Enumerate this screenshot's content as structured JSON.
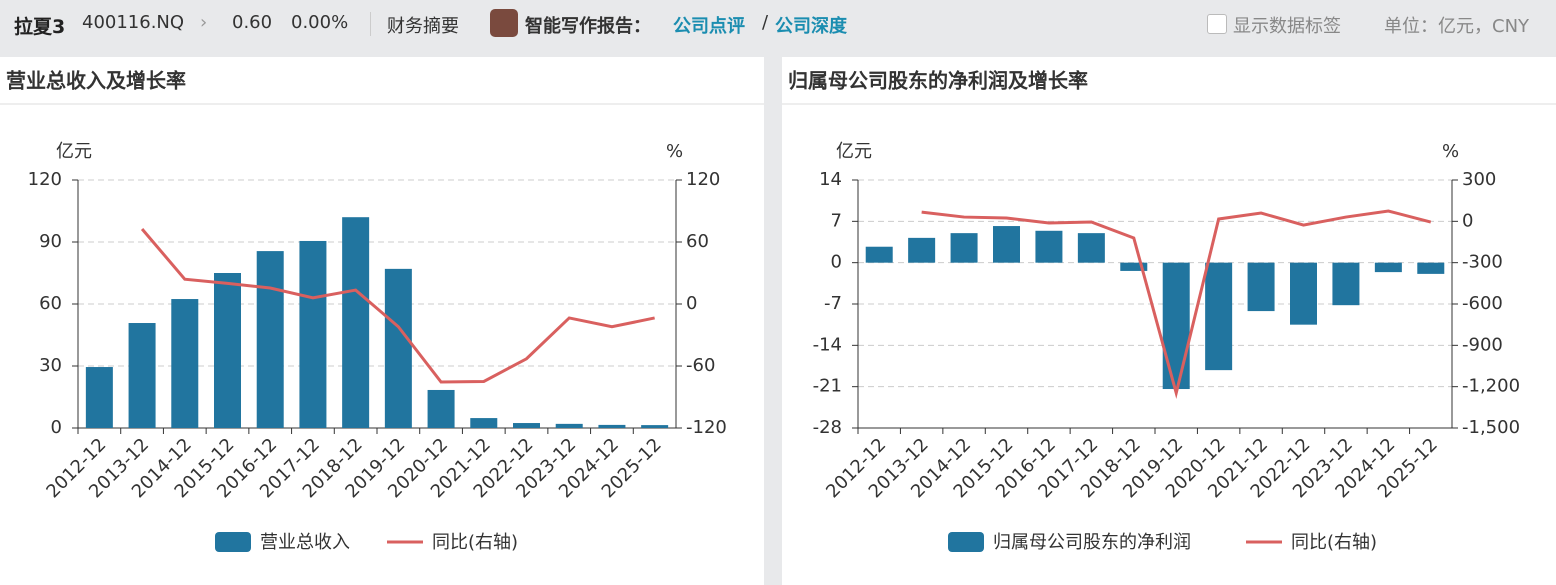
{
  "header": {
    "name": "拉夏3",
    "code": "400116.NQ",
    "price": "0.60",
    "change": "0.00%",
    "tab": "财务摘要",
    "report_label": "智能写作报告：",
    "link1": "公司点评",
    "separator": "/",
    "link2": "公司深度",
    "checkbox_label": "显示数据标签",
    "unit": "单位：亿元，CNY"
  },
  "chart_data": [
    {
      "type": "bar",
      "title": "营业总收入及增长率",
      "ylabel": "亿元",
      "y2label": "%",
      "categories": [
        "2012-12",
        "2013-12",
        "2014-12",
        "2015-12",
        "2016-12",
        "2017-12",
        "2018-12",
        "2019-12",
        "2020-12",
        "2021-12",
        "2022-12",
        "2023-12",
        "2024-12",
        "2025-12"
      ],
      "series": [
        {
          "name": "营业总收入",
          "type": "bar",
          "color": "#21759f",
          "values": [
            29.5,
            50.8,
            62.4,
            75,
            85.6,
            90.5,
            102,
            77,
            18.4,
            4.8,
            2.4,
            2,
            1.5,
            1.4
          ]
        },
        {
          "name": "同比(右轴)",
          "type": "line",
          "axis": "y2",
          "color": "#d9605f",
          "values": [
            null,
            72.6,
            24,
            20,
            15.5,
            6,
            13.5,
            -22,
            -75.5,
            -75,
            -53,
            -13.5,
            -22,
            -13.5
          ]
        }
      ],
      "ylim": [
        0,
        120
      ],
      "yticks": [
        0,
        30,
        60,
        90,
        120
      ],
      "y2lim": [
        -120,
        120
      ],
      "y2ticks": [
        -120,
        -60,
        0,
        60,
        120
      ],
      "grid": true
    },
    {
      "type": "bar",
      "title": "归属母公司股东的净利润及增长率",
      "ylabel": "亿元",
      "y2label": "%",
      "categories": [
        "2012-12",
        "2013-12",
        "2014-12",
        "2015-12",
        "2016-12",
        "2017-12",
        "2018-12",
        "2019-12",
        "2020-12",
        "2021-12",
        "2022-12",
        "2023-12",
        "2024-12",
        "2025-12"
      ],
      "series": [
        {
          "name": "归属母公司股东的净利润",
          "type": "bar",
          "color": "#21759f",
          "values": [
            2.7,
            4.2,
            5.0,
            6.2,
            5.4,
            5.0,
            -1.4,
            -21.4,
            -18.2,
            -8.2,
            -10.5,
            -7.2,
            -1.6,
            -1.9
          ]
        },
        {
          "name": "同比(右轴)",
          "type": "line",
          "axis": "y2",
          "color": "#d9605f",
          "values": [
            null,
            67,
            31,
            24,
            -12,
            -5,
            -121,
            -1246,
            17,
            60,
            -27,
            31,
            75,
            -5
          ]
        }
      ],
      "ylim": [
        -28,
        14
      ],
      "yticks": [
        -28,
        -21,
        -14,
        -7,
        0,
        7,
        14
      ],
      "y2lim": [
        -1500,
        300
      ],
      "y2ticks": [
        {
          "value": -1500,
          "label": "-1,500"
        },
        {
          "value": -1200,
          "label": "-1,200"
        },
        -900,
        -600,
        -300,
        0,
        300
      ],
      "grid": true
    }
  ]
}
